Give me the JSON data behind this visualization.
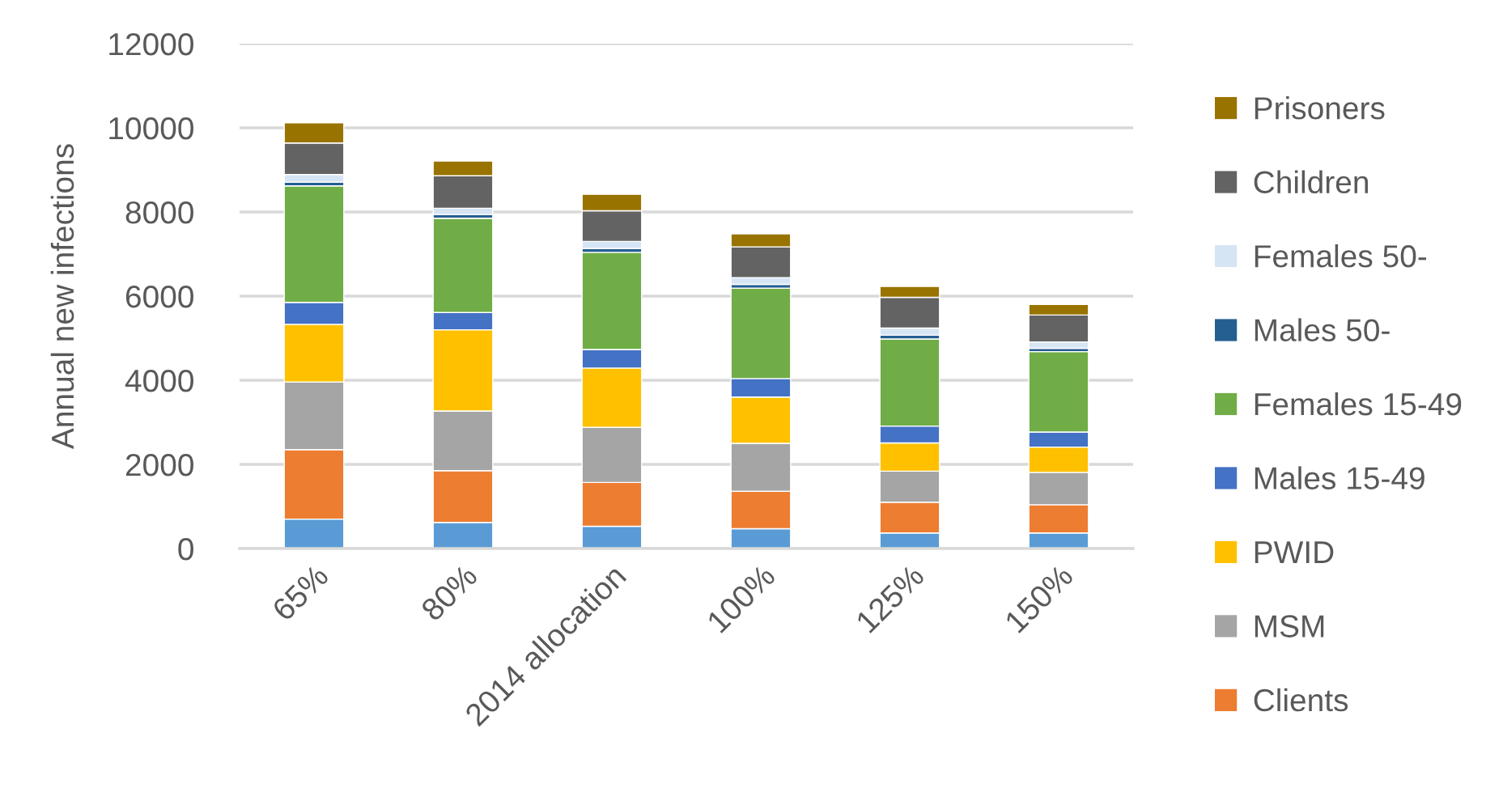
{
  "chart_data": {
    "type": "bar",
    "stacked": true,
    "categories": [
      "65%",
      "80%",
      "2014 allocation",
      "100%",
      "125%",
      "150%"
    ],
    "ylabel": "Annual new infections",
    "ylim": [
      0,
      12000
    ],
    "yticks": [
      0,
      2000,
      4000,
      6000,
      8000,
      10000,
      12000
    ],
    "grid": "y",
    "legend": "right",
    "series": [
      {
        "color": "#5b9bd5",
        "values": [
          700,
          620,
          530,
          470,
          370,
          370
        ]
      },
      {
        "name": "Clients",
        "color": "#ed7d31",
        "values": [
          1650,
          1230,
          1040,
          890,
          730,
          670
        ]
      },
      {
        "name": "MSM",
        "color": "#a5a5a5",
        "values": [
          1610,
          1420,
          1310,
          1140,
          740,
          770
        ]
      },
      {
        "name": "PWID",
        "color": "#ffc000",
        "values": [
          1370,
          1930,
          1410,
          1100,
          670,
          600
        ]
      },
      {
        "name": "Males 15-49",
        "color": "#4472c4",
        "values": [
          520,
          410,
          440,
          440,
          400,
          360
        ]
      },
      {
        "name": "Females 15-49",
        "color": "#70ad47",
        "values": [
          2770,
          2240,
          2310,
          2150,
          2070,
          1910
        ]
      },
      {
        "name": "Males 50-",
        "color": "#255e91",
        "values": [
          90,
          90,
          90,
          90,
          90,
          80
        ]
      },
      {
        "name": "Females 50-",
        "color": "#d6e5f4",
        "values": [
          180,
          150,
          170,
          160,
          170,
          150
        ]
      },
      {
        "name": "Children",
        "color": "#636363",
        "values": [
          750,
          770,
          730,
          730,
          730,
          640
        ]
      },
      {
        "name": "Prisoners",
        "color": "#997300",
        "values": [
          480,
          350,
          390,
          310,
          260,
          250
        ]
      }
    ]
  }
}
